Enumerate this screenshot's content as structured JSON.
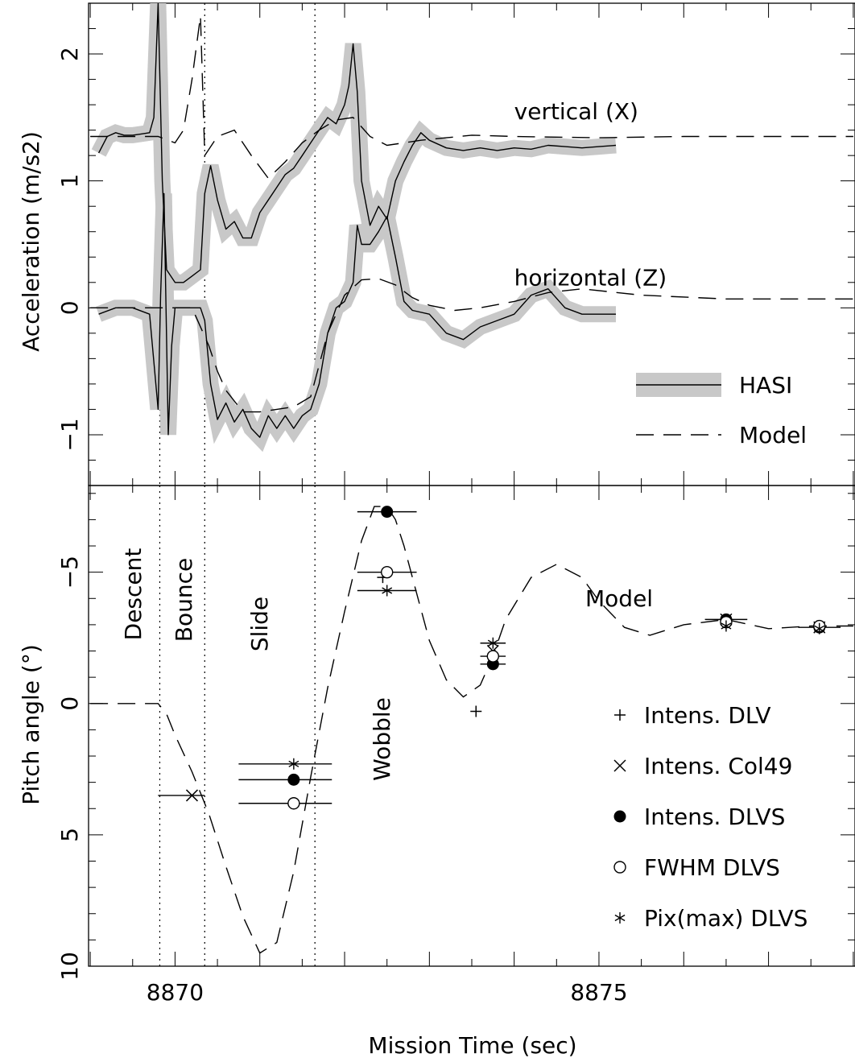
{
  "chart_data": [
    {
      "type": "line",
      "panel": "top",
      "ylabel": "Acceleration (m/s2)",
      "ylim": [
        -1.4,
        2.4
      ],
      "xlim": [
        8868.98,
        8878.02
      ],
      "yticks": [
        -1,
        0,
        1,
        2
      ],
      "yticklabels": [
        "−1",
        "0",
        "1",
        "2"
      ],
      "event_lines_x": [
        8869.82,
        8870.35,
        8871.65
      ],
      "series": [
        {
          "name": "HASI",
          "style": "solid-with-gray-band",
          "groups": [
            {
              "label": "vertical (X)",
              "x": [
                8869.1,
                8869.2,
                8869.3,
                8869.4,
                8869.5,
                8869.6,
                8869.7,
                8869.75,
                8869.8,
                8869.85,
                8869.9,
                8870.0,
                8870.1,
                8870.2,
                8870.3,
                8870.35,
                8870.42,
                8870.5,
                8870.6,
                8870.7,
                8870.8,
                8870.9,
                8871.0,
                8871.1,
                8871.2,
                8871.3,
                8871.4,
                8871.5,
                8871.6,
                8871.7,
                8871.8,
                8871.9,
                8872.0,
                8872.05,
                8872.1,
                8872.15,
                8872.2,
                8872.3,
                8872.4,
                8872.5,
                8872.6,
                8872.7,
                8872.8,
                8872.9,
                8873.0,
                8873.2,
                8873.4,
                8873.6,
                8873.8,
                8874.0,
                8874.2,
                8874.4,
                8874.6,
                8874.8,
                8875.0,
                8875.2
              ],
              "y": [
                1.22,
                1.35,
                1.38,
                1.36,
                1.36,
                1.37,
                1.38,
                1.5,
                2.4,
                1.0,
                0.3,
                0.2,
                0.2,
                0.25,
                0.3,
                0.9,
                1.12,
                0.85,
                0.62,
                0.68,
                0.55,
                0.55,
                0.75,
                0.85,
                0.95,
                1.05,
                1.1,
                1.2,
                1.3,
                1.4,
                1.5,
                1.45,
                1.6,
                1.75,
                2.08,
                1.7,
                1.0,
                0.65,
                0.8,
                0.7,
                1.0,
                1.15,
                1.28,
                1.38,
                1.32,
                1.26,
                1.24,
                1.26,
                1.24,
                1.26,
                1.25,
                1.28,
                1.27,
                1.26,
                1.27,
                1.28
              ]
            },
            {
              "label": "horizontal (Z)",
              "x": [
                8869.1,
                8869.3,
                8869.5,
                8869.7,
                8869.8,
                8869.83,
                8869.87,
                8869.92,
                8869.96,
                8870.0,
                8870.05,
                8870.1,
                8870.2,
                8870.3,
                8870.35,
                8870.42,
                8870.5,
                8870.6,
                8870.7,
                8870.8,
                8870.9,
                8871.0,
                8871.1,
                8871.2,
                8871.3,
                8871.4,
                8871.5,
                8871.6,
                8871.7,
                8871.8,
                8871.9,
                8872.0,
                8872.1,
                8872.15,
                8872.2,
                8872.3,
                8872.4,
                8872.5,
                8872.6,
                8872.7,
                8872.8,
                8873.0,
                8873.2,
                8873.4,
                8873.6,
                8873.8,
                8874.0,
                8874.2,
                8874.4,
                8874.6,
                8874.8,
                8875.0,
                8875.2
              ],
              "y": [
                -0.05,
                0.0,
                0.0,
                -0.05,
                -0.8,
                0.1,
                0.9,
                -1.0,
                -0.3,
                0.0,
                0.0,
                0.0,
                0.0,
                0.0,
                -0.1,
                -0.6,
                -0.88,
                -0.75,
                -0.9,
                -0.8,
                -0.95,
                -1.02,
                -0.85,
                -0.95,
                -0.85,
                -0.95,
                -0.85,
                -0.8,
                -0.6,
                -0.2,
                0.0,
                0.05,
                0.2,
                0.65,
                0.5,
                0.5,
                0.6,
                0.72,
                0.4,
                0.05,
                -0.02,
                -0.05,
                -0.2,
                -0.25,
                -0.15,
                -0.1,
                -0.05,
                0.1,
                0.15,
                0.0,
                -0.05,
                -0.05,
                -0.05
              ]
            }
          ]
        },
        {
          "name": "Model",
          "style": "dashed",
          "groups": [
            {
              "label": "vertical (X)",
              "x": [
                8869.0,
                8869.8,
                8870.0,
                8870.1,
                8870.2,
                8870.3,
                8870.35,
                8870.5,
                8870.7,
                8870.9,
                8871.1,
                8871.3,
                8871.5,
                8871.7,
                8871.9,
                8872.1,
                8872.3,
                8872.5,
                8872.7,
                8872.9,
                8873.2,
                8873.5,
                8874.0,
                8875.0,
                8876.0,
                8877.0,
                8878.0
              ],
              "y": [
                1.35,
                1.35,
                1.3,
                1.4,
                1.8,
                2.3,
                1.2,
                1.35,
                1.4,
                1.2,
                1.02,
                1.15,
                1.3,
                1.4,
                1.48,
                1.5,
                1.35,
                1.28,
                1.3,
                1.32,
                1.34,
                1.36,
                1.35,
                1.34,
                1.35,
                1.35,
                1.35
              ]
            },
            {
              "label": "horizontal (Z)",
              "x": [
                8869.0,
                8869.8,
                8870.0,
                8870.2,
                8870.4,
                8870.5,
                8870.6,
                8870.8,
                8871.0,
                8871.2,
                8871.4,
                8871.6,
                8871.8,
                8872.0,
                8872.2,
                8872.4,
                8872.6,
                8872.8,
                8873.0,
                8873.3,
                8873.6,
                8874.0,
                8874.4,
                8874.8,
                8875.5,
                8876.5,
                8877.5,
                8878.0
              ],
              "y": [
                0.0,
                0.0,
                0.0,
                0.0,
                -0.3,
                -0.5,
                -0.65,
                -0.82,
                -0.82,
                -0.8,
                -0.78,
                -0.7,
                -0.2,
                0.1,
                0.22,
                0.23,
                0.18,
                0.08,
                0.02,
                -0.02,
                0.0,
                0.05,
                0.12,
                0.15,
                0.1,
                0.07,
                0.07,
                0.07
              ]
            }
          ]
        }
      ],
      "annotations": [
        {
          "text": "vertical (X)",
          "x": 8874.0,
          "y": 1.55
        },
        {
          "text": "horizontal (Z)",
          "x": 8874.0,
          "y": 0.24
        }
      ],
      "legend": {
        "placement": "bottom-right",
        "entries": [
          {
            "label": "HASI",
            "style": "solid-with-gray-band"
          },
          {
            "label": "Model",
            "style": "dashed"
          }
        ]
      }
    },
    {
      "type": "scatter",
      "panel": "bottom",
      "xlabel": "Mission Time (sec)",
      "ylabel": "Pitch angle (°)",
      "ylim": [
        -8.3,
        10
      ],
      "y_inverted": true,
      "xlim": [
        8868.98,
        8878.02
      ],
      "xticks": [
        8870,
        8875
      ],
      "xticklabels": [
        "8870",
        "8875"
      ],
      "yticks": [
        -5,
        0,
        5,
        10
      ],
      "yticklabels": [
        "−5",
        "0",
        "5",
        "10"
      ],
      "event_lines_x": [
        8869.82,
        8870.35,
        8871.65
      ],
      "phase_labels": [
        "Descent",
        "Bounce",
        "Slide",
        "Wobble"
      ],
      "model_label": "Model",
      "model": {
        "x": [
          8869.0,
          8869.8,
          8869.9,
          8870.0,
          8870.2,
          8870.4,
          8870.6,
          8870.8,
          8871.0,
          8871.2,
          8871.4,
          8871.6,
          8871.8,
          8872.0,
          8872.2,
          8872.35,
          8872.5,
          8872.6,
          8872.7,
          8872.85,
          8873.0,
          8873.2,
          8873.4,
          8873.6,
          8873.75,
          8873.9,
          8874.2,
          8874.5,
          8874.8,
          8875.0,
          8875.3,
          8875.6,
          8876.0,
          8876.5,
          8877.0,
          8877.5,
          8878.0
        ],
        "y": [
          0.0,
          0.0,
          0.4,
          1.2,
          2.6,
          4.2,
          6.2,
          8.1,
          9.5,
          9.1,
          6.4,
          2.8,
          -0.6,
          -3.5,
          -6.2,
          -7.5,
          -7.5,
          -7.0,
          -6.0,
          -4.2,
          -2.4,
          -0.9,
          -0.25,
          -0.7,
          -1.8,
          -3.2,
          -4.8,
          -5.3,
          -4.8,
          -3.9,
          -2.9,
          -2.6,
          -3.0,
          -3.2,
          -2.85,
          -2.95,
          -2.95
        ]
      },
      "series": [
        {
          "name": "Intens. DLV",
          "marker": "plus",
          "x": [
            8872.45,
            8873.55,
            8876.5,
            8877.6
          ],
          "y": [
            -4.8,
            0.3,
            -3.1,
            -2.9
          ]
        },
        {
          "name": "Intens. Col49",
          "marker": "x",
          "x": [
            8870.2,
            8873.75,
            8876.5,
            8877.6
          ],
          "y": [
            3.5,
            -2.0,
            -3.2,
            -2.9
          ]
        },
        {
          "name": "Intens. DLVS",
          "marker": "filled-circle",
          "x": [
            8871.4,
            8872.5,
            8873.75,
            8876.5,
            8877.6
          ],
          "y": [
            2.9,
            -7.3,
            -1.5,
            -3.2,
            -2.9
          ]
        },
        {
          "name": "FWHM DLVS",
          "marker": "open-circle",
          "x": [
            8871.4,
            8872.5,
            8873.75,
            8876.5,
            8877.6
          ],
          "y": [
            3.8,
            -5.0,
            -1.8,
            -3.1,
            -2.95
          ]
        },
        {
          "name": "Pix(max) DLVS",
          "marker": "asterisk",
          "x": [
            8871.4,
            8872.5,
            8873.75,
            8876.5,
            8877.6
          ],
          "y": [
            2.3,
            -4.3,
            -2.3,
            -2.95,
            -2.85
          ]
        }
      ],
      "error_bars": [
        {
          "x1": 8869.8,
          "x2": 8870.35,
          "y": 3.5
        },
        {
          "x1": 8870.75,
          "x2": 8871.85,
          "y": 2.3
        },
        {
          "x1": 8870.75,
          "x2": 8871.85,
          "y": 2.9
        },
        {
          "x1": 8870.75,
          "x2": 8871.85,
          "y": 3.8
        },
        {
          "x1": 8872.15,
          "x2": 8872.85,
          "y": -7.3
        },
        {
          "x1": 8872.15,
          "x2": 8872.85,
          "y": -5.0
        },
        {
          "x1": 8872.15,
          "x2": 8872.85,
          "y": -4.3
        },
        {
          "x1": 8873.6,
          "x2": 8873.9,
          "y": -2.3
        },
        {
          "x1": 8873.6,
          "x2": 8873.9,
          "y": -1.8
        },
        {
          "x1": 8873.6,
          "x2": 8873.9,
          "y": -1.5
        },
        {
          "x1": 8876.25,
          "x2": 8876.75,
          "y": -3.2
        },
        {
          "x1": 8877.35,
          "x2": 8877.85,
          "y": -2.9
        }
      ],
      "legend": {
        "placement": "bottom-right",
        "entries": [
          {
            "label": "Intens. DLV",
            "marker": "plus"
          },
          {
            "label": "Intens. Col49",
            "marker": "x"
          },
          {
            "label": "Intens. DLVS",
            "marker": "filled-circle"
          },
          {
            "label": "FWHM DLVS",
            "marker": "open-circle"
          },
          {
            "label": "Pix(max) DLVS",
            "marker": "asterisk"
          }
        ]
      }
    }
  ]
}
